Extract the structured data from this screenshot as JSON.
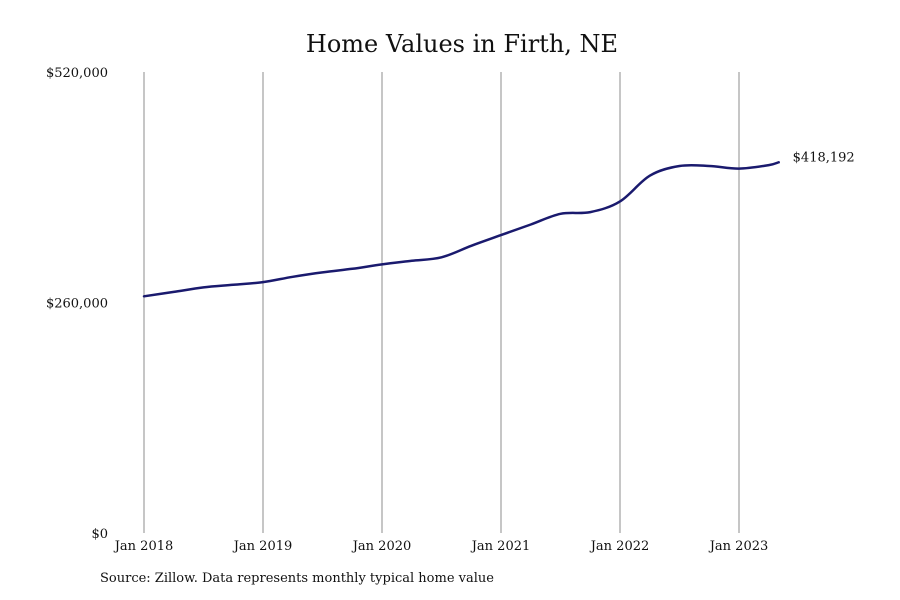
{
  "chart_data": {
    "type": "line",
    "title": "Home Values in Firth, NE",
    "xlabel": "",
    "ylabel": "",
    "ylim": [
      0,
      520000
    ],
    "y_ticks": [
      "$0",
      "$260,000",
      "$520,000"
    ],
    "x_ticks": [
      "Jan 2018",
      "Jan 2019",
      "Jan 2020",
      "Jan 2021",
      "Jan 2022",
      "Jan 2023"
    ],
    "grid": "vertical at each January",
    "line_color": "#1a1a6e",
    "end_label": "$418,192",
    "series": [
      {
        "x": [
          "2018-01",
          "2018-04",
          "2018-07",
          "2018-10",
          "2019-01",
          "2019-04",
          "2019-07",
          "2019-10",
          "2020-01",
          "2020-04",
          "2020-07",
          "2020-10",
          "2021-01",
          "2021-04",
          "2021-07",
          "2021-10",
          "2022-01",
          "2022-04",
          "2022-07",
          "2022-10",
          "2023-01",
          "2023-04",
          "2023-05"
        ],
        "values": [
          267000,
          272000,
          277000,
          280000,
          283000,
          289000,
          294000,
          298000,
          303000,
          307000,
          311000,
          324000,
          336000,
          348000,
          360000,
          362000,
          374000,
          403000,
          414000,
          414000,
          411000,
          415000,
          418192
        ]
      }
    ]
  },
  "footer": {
    "source": "Source: Zillow. Data represents monthly typical home value"
  }
}
